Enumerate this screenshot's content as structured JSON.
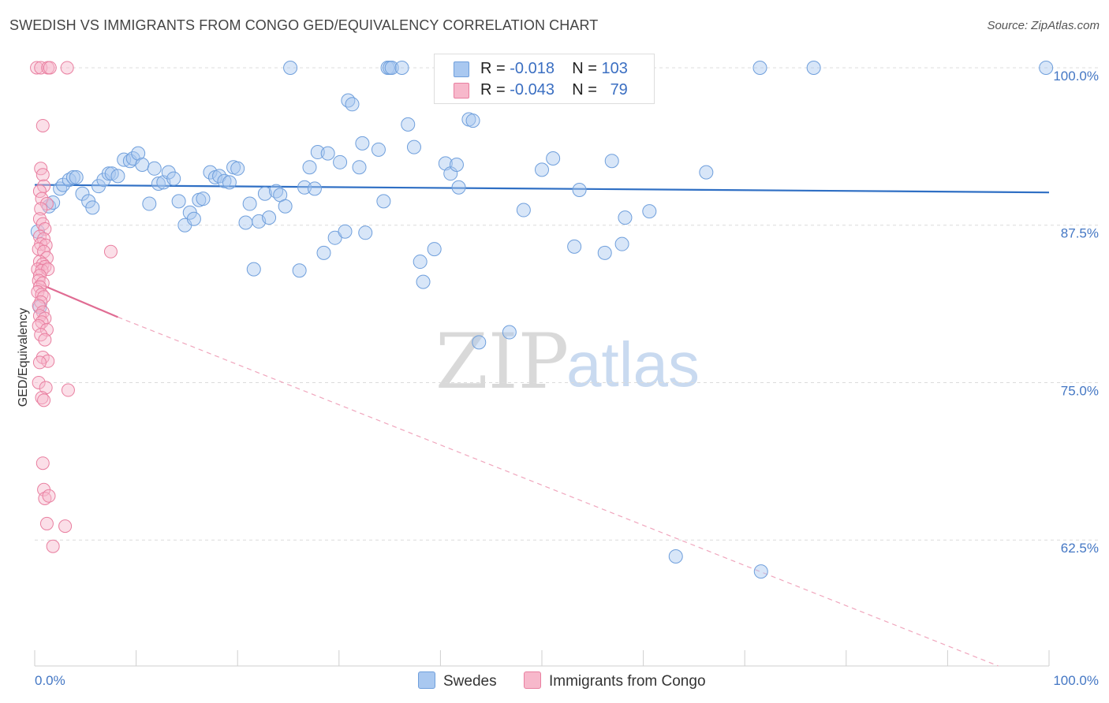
{
  "title": "SWEDISH VS IMMIGRANTS FROM CONGO GED/EQUIVALENCY CORRELATION CHART",
  "source": "Source: ZipAtlas.com",
  "watermark": {
    "zip": "ZIP",
    "atlas": "atlas"
  },
  "legend_stats": [
    {
      "r_label": "R =",
      "r_value": "-0.018",
      "n_label": "N =",
      "n_value": "103"
    },
    {
      "r_label": "R =",
      "r_value": "-0.043",
      "n_label": "N =",
      "n_value": "79"
    }
  ],
  "chart_data": {
    "type": "scatter",
    "title": "SWEDISH VS IMMIGRANTS FROM CONGO GED/EQUIVALENCY CORRELATION CHART",
    "xlabel": "",
    "ylabel": "GED/Equivalency",
    "xlim": [
      0,
      100
    ],
    "ylim": [
      52.5,
      101.5
    ],
    "x_tick_labels": [
      "0.0%",
      "100.0%"
    ],
    "y_ticks": [
      62.5,
      75.0,
      87.5,
      100.0
    ],
    "y_tick_labels": [
      "62.5%",
      "75.0%",
      "87.5%",
      "100.0%"
    ],
    "grid": true,
    "legend_position": "bottom",
    "series": [
      {
        "name": "Swedes",
        "color": "#a9c8f0",
        "stroke": "#6f9fdc",
        "trend": {
          "x": [
            0,
            100
          ],
          "y": [
            90.7,
            90.1
          ]
        },
        "points": [
          [
            0.3,
            87.0
          ],
          [
            0.5,
            81.0
          ],
          [
            1.4,
            89.0
          ],
          [
            1.8,
            89.3
          ],
          [
            2.5,
            90.4
          ],
          [
            2.8,
            90.7
          ],
          [
            3.4,
            91.1
          ],
          [
            3.8,
            91.3
          ],
          [
            4.1,
            91.3
          ],
          [
            4.7,
            90.0
          ],
          [
            5.3,
            89.4
          ],
          [
            5.7,
            88.9
          ],
          [
            6.3,
            90.6
          ],
          [
            6.8,
            91.1
          ],
          [
            7.3,
            91.6
          ],
          [
            7.6,
            91.6
          ],
          [
            8.2,
            91.4
          ],
          [
            8.8,
            92.7
          ],
          [
            9.4,
            92.6
          ],
          [
            9.7,
            92.8
          ],
          [
            10.2,
            93.2
          ],
          [
            10.6,
            92.3
          ],
          [
            11.3,
            89.2
          ],
          [
            11.8,
            92.0
          ],
          [
            12.2,
            90.8
          ],
          [
            12.7,
            90.9
          ],
          [
            13.2,
            91.7
          ],
          [
            13.7,
            91.2
          ],
          [
            14.2,
            89.4
          ],
          [
            14.8,
            87.5
          ],
          [
            15.3,
            88.5
          ],
          [
            15.7,
            88.0
          ],
          [
            16.2,
            89.5
          ],
          [
            16.6,
            89.6
          ],
          [
            17.3,
            91.7
          ],
          [
            17.8,
            91.3
          ],
          [
            18.2,
            91.4
          ],
          [
            18.7,
            91.0
          ],
          [
            19.2,
            90.9
          ],
          [
            19.6,
            92.1
          ],
          [
            20.0,
            92.0
          ],
          [
            20.8,
            87.7
          ],
          [
            21.2,
            89.2
          ],
          [
            21.6,
            84.0
          ],
          [
            22.1,
            87.8
          ],
          [
            22.7,
            90.0
          ],
          [
            23.1,
            88.1
          ],
          [
            23.8,
            90.2
          ],
          [
            24.2,
            89.9
          ],
          [
            24.7,
            89.0
          ],
          [
            25.2,
            100.0
          ],
          [
            26.1,
            83.9
          ],
          [
            26.6,
            90.5
          ],
          [
            27.1,
            92.1
          ],
          [
            27.6,
            90.4
          ],
          [
            27.9,
            93.3
          ],
          [
            28.5,
            85.3
          ],
          [
            28.9,
            93.2
          ],
          [
            29.6,
            86.5
          ],
          [
            30.1,
            92.5
          ],
          [
            30.6,
            87.0
          ],
          [
            30.9,
            97.4
          ],
          [
            31.3,
            97.1
          ],
          [
            32.0,
            92.1
          ],
          [
            32.3,
            94.0
          ],
          [
            32.6,
            86.9
          ],
          [
            33.9,
            93.5
          ],
          [
            34.4,
            89.4
          ],
          [
            34.8,
            100.0
          ],
          [
            35.0,
            100.0
          ],
          [
            35.2,
            100.0
          ],
          [
            36.2,
            100.0
          ],
          [
            36.8,
            95.5
          ],
          [
            37.4,
            93.7
          ],
          [
            38.0,
            84.6
          ],
          [
            38.3,
            83.0
          ],
          [
            39.4,
            85.6
          ],
          [
            40.5,
            92.4
          ],
          [
            41.0,
            91.6
          ],
          [
            41.6,
            92.3
          ],
          [
            41.8,
            90.5
          ],
          [
            42.1,
            100.0
          ],
          [
            42.8,
            95.9
          ],
          [
            43.2,
            95.8
          ],
          [
            43.8,
            78.2
          ],
          [
            45.0,
            100.0
          ],
          [
            46.8,
            79.0
          ],
          [
            48.2,
            88.7
          ],
          [
            50.0,
            91.9
          ],
          [
            51.1,
            92.8
          ],
          [
            53.2,
            85.8
          ],
          [
            53.7,
            90.3
          ],
          [
            56.2,
            85.3
          ],
          [
            56.9,
            92.6
          ],
          [
            57.9,
            86.0
          ],
          [
            58.2,
            88.1
          ],
          [
            60.6,
            88.6
          ],
          [
            63.2,
            61.2
          ],
          [
            66.2,
            91.7
          ],
          [
            71.6,
            60.0
          ],
          [
            71.5,
            100.0
          ],
          [
            76.8,
            100.0
          ],
          [
            99.7,
            100.0
          ]
        ]
      },
      {
        "name": "Immigrants from Congo",
        "color": "#f7b8cb",
        "stroke": "#e97fa0",
        "trend": {
          "x": [
            0,
            8.2
          ],
          "y": [
            83.0,
            80.2
          ]
        },
        "trend_extension": {
          "x": [
            8.2,
            95
          ],
          "y": [
            80.2,
            52.5
          ]
        },
        "points": [
          [
            0.2,
            100.0
          ],
          [
            0.6,
            100.0
          ],
          [
            1.3,
            100.0
          ],
          [
            1.5,
            100.0
          ],
          [
            3.2,
            100.0
          ],
          [
            0.8,
            95.4
          ],
          [
            0.6,
            92.0
          ],
          [
            0.8,
            91.5
          ],
          [
            0.9,
            90.6
          ],
          [
            0.5,
            90.2
          ],
          [
            0.7,
            89.6
          ],
          [
            1.2,
            89.2
          ],
          [
            0.6,
            88.8
          ],
          [
            0.5,
            88.0
          ],
          [
            0.8,
            87.6
          ],
          [
            1.0,
            87.2
          ],
          [
            0.5,
            86.6
          ],
          [
            0.9,
            86.4
          ],
          [
            0.6,
            86.0
          ],
          [
            1.1,
            85.9
          ],
          [
            0.4,
            85.6
          ],
          [
            0.9,
            85.4
          ],
          [
            1.2,
            84.9
          ],
          [
            0.5,
            84.6
          ],
          [
            0.8,
            84.4
          ],
          [
            1.0,
            84.2
          ],
          [
            0.3,
            84.0
          ],
          [
            0.7,
            83.9
          ],
          [
            1.3,
            84.0
          ],
          [
            0.5,
            83.5
          ],
          [
            0.4,
            83.1
          ],
          [
            0.8,
            82.9
          ],
          [
            0.5,
            82.6
          ],
          [
            0.3,
            82.2
          ],
          [
            0.7,
            82.0
          ],
          [
            0.9,
            81.8
          ],
          [
            0.6,
            81.4
          ],
          [
            0.4,
            81.1
          ],
          [
            0.8,
            80.6
          ],
          [
            0.5,
            80.3
          ],
          [
            1.0,
            80.1
          ],
          [
            0.7,
            79.8
          ],
          [
            0.4,
            79.5
          ],
          [
            1.2,
            79.2
          ],
          [
            0.6,
            78.8
          ],
          [
            1.0,
            78.4
          ],
          [
            0.8,
            77.0
          ],
          [
            1.3,
            76.7
          ],
          [
            0.5,
            76.6
          ],
          [
            0.4,
            75.0
          ],
          [
            1.1,
            74.6
          ],
          [
            0.7,
            73.8
          ],
          [
            0.9,
            73.6
          ],
          [
            3.3,
            74.4
          ],
          [
            7.5,
            85.4
          ],
          [
            0.8,
            68.6
          ],
          [
            0.9,
            66.5
          ],
          [
            1.0,
            65.8
          ],
          [
            1.4,
            66.0
          ],
          [
            1.2,
            63.8
          ],
          [
            1.8,
            62.0
          ],
          [
            3.0,
            63.6
          ]
        ]
      }
    ]
  },
  "bottom_legend": [
    {
      "label": "Swedes",
      "color": "#a9c8f0",
      "stroke": "#6f9fdc"
    },
    {
      "label": "Immigrants from Congo",
      "color": "#f7b8cb",
      "stroke": "#e97fa0"
    }
  ]
}
